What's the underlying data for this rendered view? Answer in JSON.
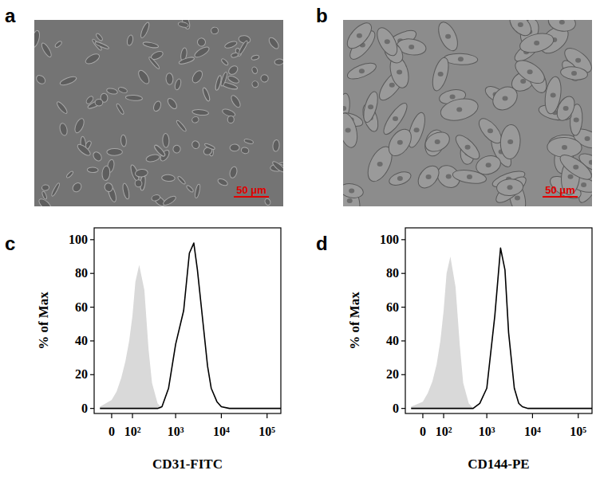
{
  "images": [
    {
      "title": "a",
      "scale_bar": "50 μm"
    },
    {
      "title": "b",
      "scale_bar": "50 μm"
    }
  ],
  "chart_data": [
    {
      "type": "histogram",
      "title": "c",
      "xlabel": "CD31-FITC",
      "ylabel": "% of Max",
      "log": "x",
      "x": [
        -50,
        0,
        20,
        40,
        60,
        80,
        100,
        120,
        150,
        200,
        250,
        300,
        400,
        500,
        700,
        1000,
        1500,
        2000,
        2500,
        3000,
        4000,
        5000,
        6000,
        8000,
        10000,
        15000,
        20000,
        50000,
        100000,
        200000
      ],
      "series": [
        {
          "type": "area",
          "color": "#d9d9d9",
          "values": [
            1,
            5,
            10,
            18,
            28,
            40,
            55,
            75,
            85,
            70,
            35,
            15,
            3,
            0,
            0,
            0,
            0,
            0,
            0,
            0,
            0,
            0,
            0,
            0,
            0,
            0,
            0,
            0,
            0,
            0
          ]
        },
        {
          "type": "line",
          "color": "#000000",
          "values": [
            0,
            0,
            0,
            0,
            0,
            0,
            0,
            0,
            0,
            0,
            0,
            0,
            0,
            1,
            12,
            38,
            58,
            92,
            98,
            82,
            50,
            25,
            12,
            4,
            1,
            0,
            0,
            0,
            0,
            0
          ]
        }
      ],
      "xlim": [
        -80,
        200000
      ],
      "xticks": [
        {
          "value": 0,
          "label": "0"
        },
        {
          "value": 100,
          "label": "10²"
        },
        {
          "value": 1000,
          "label": "10³"
        },
        {
          "value": 10000,
          "label": "10⁴"
        },
        {
          "value": 100000,
          "label": "10⁵"
        }
      ],
      "ylim": [
        -3,
        107
      ],
      "yticks": [
        0,
        20,
        40,
        60,
        80,
        100
      ]
    },
    {
      "type": "histogram",
      "title": "d",
      "xlabel": "CD144-PE",
      "ylabel": "% of Max",
      "log": "x",
      "x": [
        -50,
        0,
        20,
        40,
        60,
        80,
        100,
        120,
        150,
        200,
        250,
        300,
        400,
        500,
        700,
        1000,
        1500,
        2000,
        2500,
        3000,
        4000,
        5000,
        6000,
        8000,
        10000,
        15000,
        20000,
        50000,
        100000,
        200000
      ],
      "series": [
        {
          "type": "area",
          "color": "#d9d9d9",
          "values": [
            1,
            4,
            9,
            16,
            26,
            40,
            58,
            80,
            90,
            72,
            38,
            15,
            3,
            0,
            0,
            0,
            0,
            0,
            0,
            0,
            0,
            0,
            0,
            0,
            0,
            0,
            0,
            0,
            0,
            0
          ]
        },
        {
          "type": "line",
          "color": "#000000",
          "values": [
            0,
            0,
            0,
            0,
            0,
            0,
            0,
            0,
            0,
            0,
            0,
            0,
            0,
            0,
            3,
            12,
            55,
            95,
            82,
            45,
            12,
            3,
            1,
            0,
            0,
            0,
            0,
            0,
            0,
            0
          ]
        }
      ],
      "xlim": [
        -80,
        200000
      ],
      "xticks": [
        {
          "value": 0,
          "label": "0"
        },
        {
          "value": 100,
          "label": "10²"
        },
        {
          "value": 1000,
          "label": "10³"
        },
        {
          "value": 10000,
          "label": "10⁴"
        },
        {
          "value": 100000,
          "label": "10⁵"
        }
      ],
      "ylim": [
        -3,
        107
      ],
      "yticks": [
        0,
        20,
        40,
        60,
        80,
        100
      ]
    }
  ]
}
